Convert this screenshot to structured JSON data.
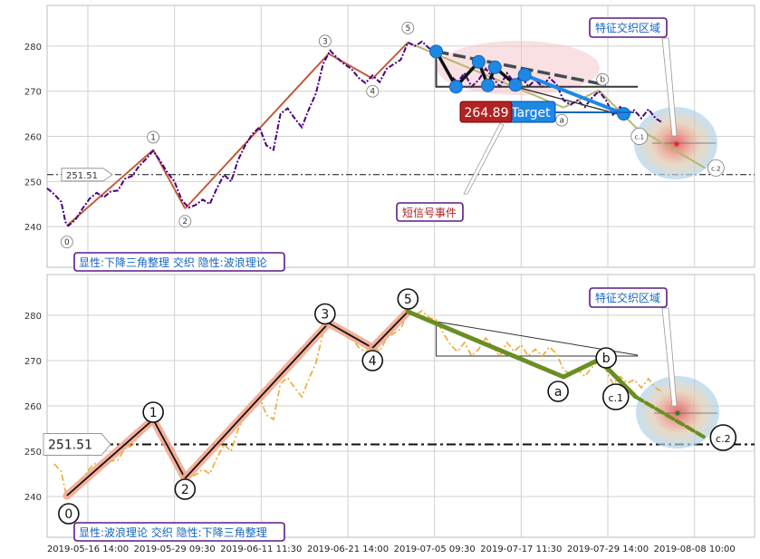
{
  "chart_data": {
    "type": "line",
    "x_ticks": [
      "2019-05-16 14:00",
      "2019-05-29 09:30",
      "2019-06-11 11:30",
      "2019-06-21 14:00",
      "2019-07-05 09:30",
      "2019-07-17 11:30",
      "2019-07-29 14:00",
      "2019-08-08 10:00"
    ],
    "y_ticks": [
      240,
      250,
      260,
      270,
      280
    ],
    "ylim": [
      231,
      289
    ],
    "xlim": [
      0,
      100
    ],
    "grid": true,
    "panels": [
      {
        "name": "top",
        "label": "显性:下降三角整理 交织 隐性:波浪理论",
        "zone_label": "特征交织区域",
        "signal_label": "短信号事件",
        "price_tag": "264.89",
        "target_label": "Target",
        "level_label": "251.51",
        "level": 251.51
      },
      {
        "name": "bottom",
        "label": "显性:波浪理论 交织 隐性:下降三角整理",
        "zone_label": "特征交织区域",
        "level_label": "251.51",
        "level": 251.51
      }
    ],
    "price_series": [
      {
        "x": 0.0,
        "y": 248.5
      },
      {
        "x": 1.0,
        "y": 247.2
      },
      {
        "x": 2.0,
        "y": 245.5
      },
      {
        "x": 2.6,
        "y": 241.0
      },
      {
        "x": 3.0,
        "y": 240.2
      },
      {
        "x": 4.0,
        "y": 241.5
      },
      {
        "x": 5.0,
        "y": 244.0
      },
      {
        "x": 6.0,
        "y": 246.2
      },
      {
        "x": 7.0,
        "y": 247.5
      },
      {
        "x": 8.0,
        "y": 246.5
      },
      {
        "x": 9.0,
        "y": 247.8
      },
      {
        "x": 10.0,
        "y": 248.0
      },
      {
        "x": 11.0,
        "y": 250.6
      },
      {
        "x": 12.0,
        "y": 251.2
      },
      {
        "x": 13.0,
        "y": 253.4
      },
      {
        "x": 14.0,
        "y": 255.0
      },
      {
        "x": 15.0,
        "y": 256.8
      },
      {
        "x": 16.0,
        "y": 254.5
      },
      {
        "x": 17.0,
        "y": 252.0
      },
      {
        "x": 18.0,
        "y": 250.0
      },
      {
        "x": 19.0,
        "y": 246.0
      },
      {
        "x": 20.0,
        "y": 244.2
      },
      {
        "x": 21.0,
        "y": 244.8
      },
      {
        "x": 22.0,
        "y": 246.0
      },
      {
        "x": 23.0,
        "y": 245.0
      },
      {
        "x": 24.0,
        "y": 248.5
      },
      {
        "x": 25.0,
        "y": 251.5
      },
      {
        "x": 26.0,
        "y": 250.0
      },
      {
        "x": 27.0,
        "y": 254.8
      },
      {
        "x": 28.0,
        "y": 258.0
      },
      {
        "x": 29.0,
        "y": 260.5
      },
      {
        "x": 30.0,
        "y": 262.0
      },
      {
        "x": 31.0,
        "y": 258.0
      },
      {
        "x": 32.0,
        "y": 257.0
      },
      {
        "x": 33.0,
        "y": 265.0
      },
      {
        "x": 34.0,
        "y": 266.2
      },
      {
        "x": 35.0,
        "y": 264.0
      },
      {
        "x": 36.0,
        "y": 262.0
      },
      {
        "x": 37.0,
        "y": 266.0
      },
      {
        "x": 38.0,
        "y": 269.5
      },
      {
        "x": 39.0,
        "y": 276.0
      },
      {
        "x": 40.0,
        "y": 279.0
      },
      {
        "x": 41.0,
        "y": 277.4
      },
      {
        "x": 42.0,
        "y": 276.0
      },
      {
        "x": 43.0,
        "y": 275.0
      },
      {
        "x": 44.0,
        "y": 273.0
      },
      {
        "x": 45.0,
        "y": 271.8
      },
      {
        "x": 46.0,
        "y": 273.5
      },
      {
        "x": 47.0,
        "y": 272.0
      },
      {
        "x": 48.0,
        "y": 275.0
      },
      {
        "x": 49.0,
        "y": 276.0
      },
      {
        "x": 50.0,
        "y": 277.0
      },
      {
        "x": 51.0,
        "y": 280.8
      },
      {
        "x": 52.0,
        "y": 280.0
      },
      {
        "x": 53.0,
        "y": 281.0
      },
      {
        "x": 54.0,
        "y": 279.5
      },
      {
        "x": 55.0,
        "y": 279.0
      },
      {
        "x": 56.0,
        "y": 276.0
      },
      {
        "x": 57.0,
        "y": 273.5
      },
      {
        "x": 58.0,
        "y": 272.0
      },
      {
        "x": 59.0,
        "y": 274.0
      },
      {
        "x": 60.0,
        "y": 271.0
      },
      {
        "x": 61.0,
        "y": 272.5
      },
      {
        "x": 62.0,
        "y": 275.0
      },
      {
        "x": 63.0,
        "y": 273.0
      },
      {
        "x": 64.0,
        "y": 271.0
      },
      {
        "x": 65.0,
        "y": 274.0
      },
      {
        "x": 66.0,
        "y": 272.0
      },
      {
        "x": 67.0,
        "y": 273.5
      },
      {
        "x": 68.0,
        "y": 271.0
      },
      {
        "x": 69.0,
        "y": 272.5
      },
      {
        "x": 70.0,
        "y": 271.0
      },
      {
        "x": 71.0,
        "y": 273.0
      },
      {
        "x": 72.0,
        "y": 271.5
      },
      {
        "x": 73.0,
        "y": 268.0
      },
      {
        "x": 74.0,
        "y": 267.0
      },
      {
        "x": 75.0,
        "y": 268.0
      },
      {
        "x": 76.0,
        "y": 266.5
      },
      {
        "x": 77.0,
        "y": 268.5
      },
      {
        "x": 78.0,
        "y": 270.0
      },
      {
        "x": 79.0,
        "y": 268.0
      },
      {
        "x": 80.0,
        "y": 264.8
      },
      {
        "x": 81.0,
        "y": 266.5
      },
      {
        "x": 82.0,
        "y": 265.0
      },
      {
        "x": 83.0,
        "y": 265.8
      },
      {
        "x": 84.0,
        "y": 264.0
      },
      {
        "x": 85.0,
        "y": 266.0
      },
      {
        "x": 86.0,
        "y": 264.0
      },
      {
        "x": 87.0,
        "y": 263.0
      }
    ],
    "wave_points": [
      {
        "label": "0",
        "x": 2.8,
        "y": 240.2
      },
      {
        "label": "1",
        "x": 15.0,
        "y": 257.0
      },
      {
        "label": "2",
        "x": 19.5,
        "y": 244.0
      },
      {
        "label": "3",
        "x": 39.8,
        "y": 278.3
      },
      {
        "label": "4",
        "x": 46.0,
        "y": 272.8
      },
      {
        "label": "5",
        "x": 51.0,
        "y": 280.8
      },
      {
        "label": "a",
        "x": 73.0,
        "y": 266.4
      },
      {
        "label": "b",
        "x": 78.0,
        "y": 270.2
      },
      {
        "label": "c.1",
        "x": 83.2,
        "y": 262.0
      },
      {
        "label": "c.2",
        "x": 93.0,
        "y": 253.0
      }
    ],
    "triangle_points": [
      {
        "x": 55.0,
        "y": 278.8
      },
      {
        "x": 57.8,
        "y": 271.0
      },
      {
        "x": 61.0,
        "y": 276.5
      },
      {
        "x": 62.3,
        "y": 271.3
      },
      {
        "x": 63.3,
        "y": 275.3
      },
      {
        "x": 66.2,
        "y": 271.4
      },
      {
        "x": 67.5,
        "y": 273.6
      },
      {
        "x": 81.5,
        "y": 265.0
      }
    ]
  }
}
